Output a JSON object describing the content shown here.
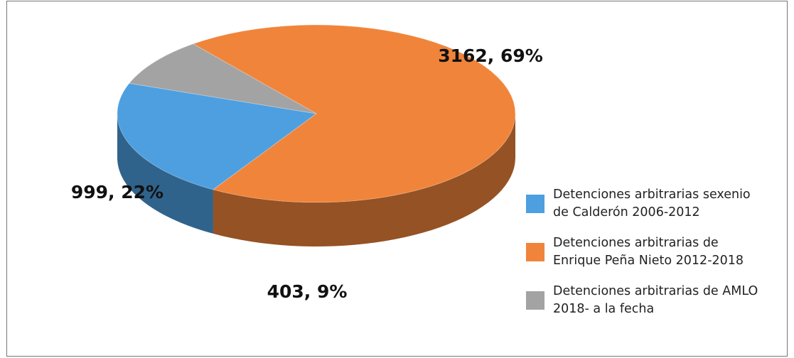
{
  "chart_data": {
    "type": "pie",
    "categories": [
      "Detenciones arbitrarias sexenio de Calderón 2006-2012",
      "Detenciones arbitrarias de Enrique Peña Nieto 2012-2018",
      "Detenciones arbitrarias de AMLO 2018- a la fecha"
    ],
    "values": [
      999,
      3162,
      403
    ],
    "value_labels": [
      "999, 22%",
      "3162, 69%",
      "403, 9%"
    ],
    "colors": [
      "#4d9fe0",
      "#f0843a",
      "#a3a3a3"
    ],
    "legend": "right"
  }
}
